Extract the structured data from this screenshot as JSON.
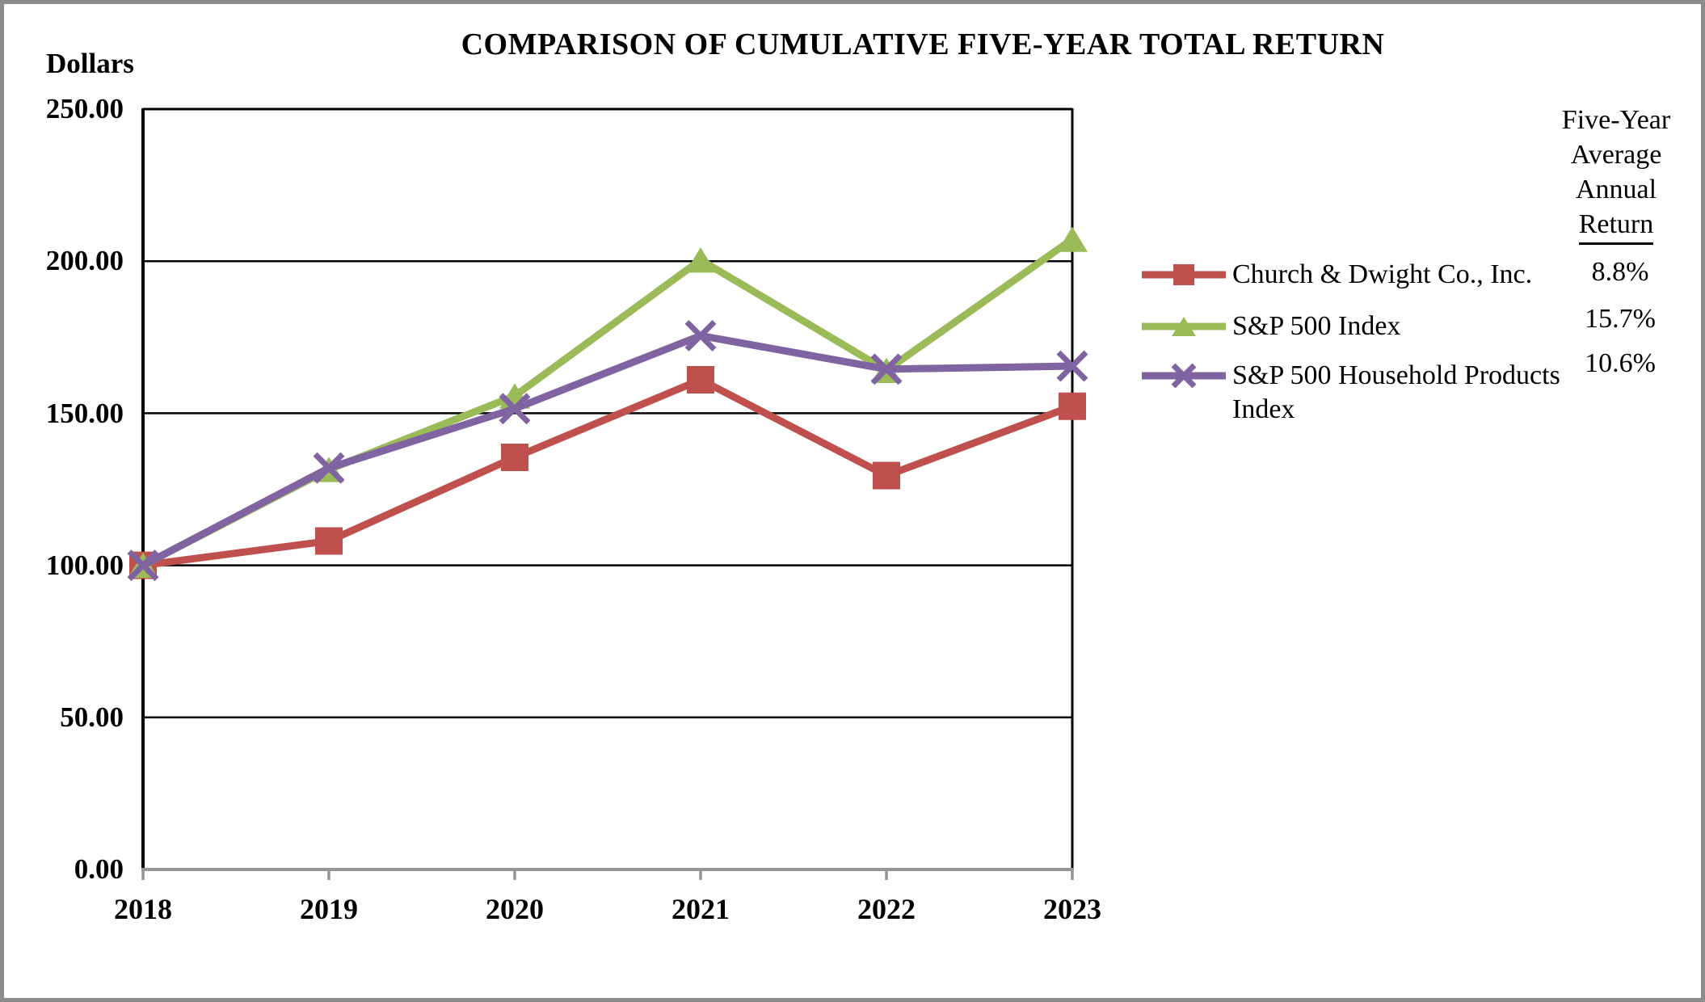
{
  "title": "COMPARISON OF CUMULATIVE FIVE-YEAR TOTAL RETURN",
  "ylabel": "Dollars",
  "legend": {
    "header_lines": [
      "Five-Year",
      "Average",
      "Annual",
      "Return"
    ],
    "items": [
      {
        "label": "Church & Dwight Co., Inc.",
        "avg_annual_return": "8.8%"
      },
      {
        "label": "S&P 500 Index",
        "avg_annual_return": "15.7%"
      },
      {
        "label": "S&P 500 Household Products Index",
        "avg_annual_return": "10.6%"
      }
    ]
  },
  "chart_data": {
    "type": "line",
    "title": "COMPARISON OF CUMULATIVE FIVE-YEAR TOTAL RETURN",
    "xlabel": "",
    "ylabel": "Dollars",
    "x_labels": [
      "2018",
      "2019",
      "2020",
      "2021",
      "2022",
      "2023"
    ],
    "ytick_labels": [
      "250.00",
      "200.00",
      "150.00",
      "100.00",
      "50.00",
      "0.00"
    ],
    "ylim": [
      0,
      250
    ],
    "ytick_step": 50,
    "grid": true,
    "legend_position": "right",
    "series": [
      {
        "name": "Church & Dwight Co., Inc.",
        "values": [
          100.0,
          108.0,
          135.5,
          161.0,
          129.5,
          152.3
        ],
        "color": "#c0504d",
        "marker": "square",
        "five_year_avg_annual_return": "8.8%"
      },
      {
        "name": "S&P 500 Index",
        "values": [
          100.0,
          131.5,
          155.7,
          200.4,
          164.1,
          207.2
        ],
        "color": "#9bbb59",
        "marker": "triangle",
        "five_year_avg_annual_return": "15.7%"
      },
      {
        "name": "S&P 500 Household Products Index",
        "values": [
          100.0,
          132.0,
          151.5,
          175.5,
          164.5,
          165.5
        ],
        "color": "#8064a2",
        "marker": "x",
        "five_year_avg_annual_return": "10.6%"
      }
    ],
    "axis_color": "#969696",
    "grid_color": "#000000"
  }
}
